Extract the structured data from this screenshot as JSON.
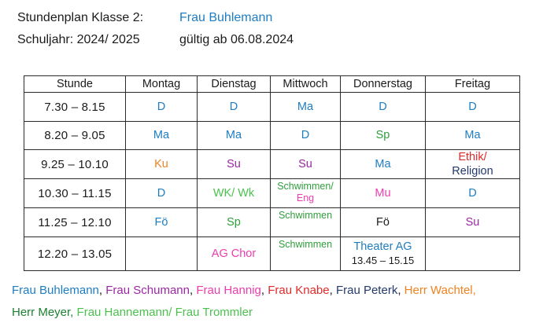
{
  "header": {
    "title": "Stundenplan Klasse 2:",
    "teacher": "Frau Buhlemann",
    "school_year": "Schuljahr: 2024/ 2025",
    "valid_from": "gültig ab 06.08.2024"
  },
  "colors": {
    "blue": "#1e7dc2",
    "green": "#2f9e3c",
    "lightgreen": "#4cc04f",
    "darkgreen": "#1d8032",
    "orange": "#ef8221",
    "purple": "#9c27a5",
    "pink": "#ee3cae",
    "red": "#e02a2a",
    "navy": "#23396b",
    "black": "#1b1b1b"
  },
  "table": {
    "headers": [
      "Stunde",
      "Montag",
      "Dienstag",
      "Mittwoch",
      "Donnerstag",
      "Freitag"
    ],
    "rows": [
      {
        "time": "7.30 – 8.15",
        "cells": [
          {
            "lines": [
              [
                {
                  "t": "D",
                  "c": "blue"
                }
              ]
            ]
          },
          {
            "lines": [
              [
                {
                  "t": "D",
                  "c": "blue"
                }
              ]
            ]
          },
          {
            "lines": [
              [
                {
                  "t": "Ma",
                  "c": "blue"
                }
              ]
            ]
          },
          {
            "lines": [
              [
                {
                  "t": "D",
                  "c": "blue"
                }
              ]
            ]
          },
          {
            "lines": [
              [
                {
                  "t": "D",
                  "c": "blue"
                }
              ]
            ]
          }
        ]
      },
      {
        "time": "8.20 – 9.05",
        "cells": [
          {
            "lines": [
              [
                {
                  "t": "Ma",
                  "c": "blue"
                }
              ]
            ]
          },
          {
            "lines": [
              [
                {
                  "t": "Ma",
                  "c": "blue"
                }
              ]
            ]
          },
          {
            "lines": [
              [
                {
                  "t": "D",
                  "c": "blue"
                }
              ]
            ]
          },
          {
            "lines": [
              [
                {
                  "t": "Sp",
                  "c": "green"
                }
              ]
            ]
          },
          {
            "lines": [
              [
                {
                  "t": "Ma",
                  "c": "blue"
                }
              ]
            ]
          }
        ]
      },
      {
        "time": "9.25 – 10.10",
        "cells": [
          {
            "lines": [
              [
                {
                  "t": "Ku",
                  "c": "orange"
                }
              ]
            ]
          },
          {
            "lines": [
              [
                {
                  "t": "Su",
                  "c": "purple"
                }
              ]
            ]
          },
          {
            "lines": [
              [
                {
                  "t": "Su",
                  "c": "purple"
                }
              ]
            ]
          },
          {
            "lines": [
              [
                {
                  "t": "Ma",
                  "c": "blue"
                }
              ]
            ]
          },
          {
            "lines": [
              [
                {
                  "t": "Ethik/",
                  "c": "red"
                }
              ],
              [
                {
                  "t": "Religion",
                  "c": "navy"
                }
              ]
            ],
            "tight": true
          }
        ]
      },
      {
        "time": "10.30 – 11.15",
        "cells": [
          {
            "lines": [
              [
                {
                  "t": "D",
                  "c": "blue"
                }
              ]
            ]
          },
          {
            "lines": [
              [
                {
                  "t": "WK/ Wk",
                  "c": "lightgreen"
                }
              ]
            ]
          },
          {
            "lines": [
              [
                {
                  "t": "Schwimmen/",
                  "c": "green"
                }
              ],
              [
                {
                  "t": "Eng",
                  "c": "pink"
                }
              ]
            ],
            "small": true,
            "top": true
          },
          {
            "lines": [
              [
                {
                  "t": "Mu",
                  "c": "pink"
                }
              ]
            ]
          },
          {
            "lines": [
              [
                {
                  "t": "D",
                  "c": "blue"
                }
              ]
            ]
          }
        ]
      },
      {
        "time": "11.25 – 12.10",
        "cells": [
          {
            "lines": [
              [
                {
                  "t": "Fö",
                  "c": "blue"
                }
              ]
            ]
          },
          {
            "lines": [
              [
                {
                  "t": "Sp",
                  "c": "green"
                }
              ]
            ]
          },
          {
            "lines": [
              [
                {
                  "t": "Schwimmen",
                  "c": "green"
                }
              ]
            ],
            "small": true,
            "top": true
          },
          {
            "lines": [
              [
                {
                  "t": "Fö",
                  "c": "black"
                }
              ]
            ]
          },
          {
            "lines": [
              [
                {
                  "t": "Su",
                  "c": "purple"
                }
              ]
            ]
          }
        ]
      },
      {
        "time": "12.20 – 13.05",
        "cells": [
          {
            "lines": []
          },
          {
            "lines": [
              [
                {
                  "t": "AG Chor",
                  "c": "pink"
                }
              ]
            ]
          },
          {
            "lines": [
              [
                {
                  "t": "Schwimmen",
                  "c": "green"
                }
              ]
            ],
            "small": true,
            "top": true
          },
          {
            "lines": [
              [
                {
                  "t": "Theater AG",
                  "c": "blue"
                }
              ],
              [
                {
                  "t": "13.45 – 15.15",
                  "c": "black",
                  "sub": true
                }
              ]
            ],
            "tight": true
          },
          {
            "lines": []
          }
        ]
      }
    ]
  },
  "footer": {
    "lines": [
      [
        {
          "t": "Frau Buhlemann",
          "c": "blue"
        },
        {
          "t": ", ",
          "c": "black"
        },
        {
          "t": "Frau Schumann",
          "c": "purple"
        },
        {
          "t": ", ",
          "c": "black"
        },
        {
          "t": "Frau Hannig",
          "c": "pink"
        },
        {
          "t": ", ",
          "c": "black"
        },
        {
          "t": "Frau Knabe",
          "c": "red"
        },
        {
          "t": ", ",
          "c": "black"
        },
        {
          "t": "Frau Peterk",
          "c": "navy"
        },
        {
          "t": ", ",
          "c": "black"
        },
        {
          "t": "Herr Wachtel,",
          "c": "orange"
        }
      ],
      [
        {
          "t": "Herr Meyer,",
          "c": "darkgreen"
        },
        {
          "t": " ",
          "c": "black"
        },
        {
          "t": "Frau Hannemann/ Frau Trommler",
          "c": "lightgreen"
        }
      ]
    ]
  }
}
